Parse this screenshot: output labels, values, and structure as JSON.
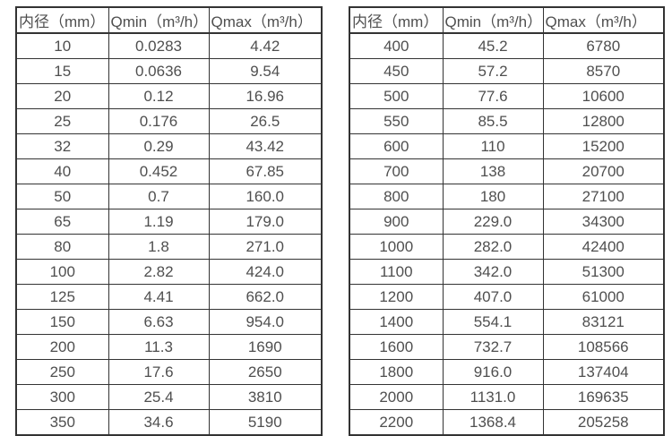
{
  "colors": {
    "border": "#333333",
    "text": "#4f4f4f",
    "background": "#ffffff"
  },
  "tables": [
    {
      "name": "small-diameter-flow-table",
      "headers": [
        "内径（mm）",
        "Qmin（m³/h）",
        "Qmax（m³/h）"
      ],
      "rows": [
        [
          "10",
          "0.0283",
          "4.42"
        ],
        [
          "15",
          "0.0636",
          "9.54"
        ],
        [
          "20",
          "0.12",
          "16.96"
        ],
        [
          "25",
          "0.176",
          "26.5"
        ],
        [
          "32",
          "0.29",
          "43.42"
        ],
        [
          "40",
          "0.452",
          "67.85"
        ],
        [
          "50",
          "0.7",
          "160.0"
        ],
        [
          "65",
          "1.19",
          "179.0"
        ],
        [
          "80",
          "1.8",
          "271.0"
        ],
        [
          "100",
          "2.82",
          "424.0"
        ],
        [
          "125",
          "4.41",
          "662.0"
        ],
        [
          "150",
          "6.63",
          "954.0"
        ],
        [
          "200",
          "11.3",
          "1690"
        ],
        [
          "250",
          "17.6",
          "2650"
        ],
        [
          "300",
          "25.4",
          "3810"
        ],
        [
          "350",
          "34.6",
          "5190"
        ]
      ]
    },
    {
      "name": "large-diameter-flow-table",
      "headers": [
        "内径（mm）",
        "Qmin（m³/h）",
        "Qmax（m³/h）"
      ],
      "rows": [
        [
          "400",
          "45.2",
          "6780"
        ],
        [
          "450",
          "57.2",
          "8570"
        ],
        [
          "500",
          "77.6",
          "10600"
        ],
        [
          "550",
          "85.5",
          "12800"
        ],
        [
          "600",
          "110",
          "15200"
        ],
        [
          "700",
          "138",
          "20700"
        ],
        [
          "800",
          "180",
          "27100"
        ],
        [
          "900",
          "229.0",
          "34300"
        ],
        [
          "1000",
          "282.0",
          "42400"
        ],
        [
          "1100",
          "342.0",
          "51300"
        ],
        [
          "1200",
          "407.0",
          "61000"
        ],
        [
          "1400",
          "554.1",
          "83121"
        ],
        [
          "1600",
          "732.7",
          "108566"
        ],
        [
          "1800",
          "916.0",
          "137404"
        ],
        [
          "2000",
          "1131.0",
          "169635"
        ],
        [
          "2200",
          "1368.4",
          "205258"
        ]
      ]
    }
  ]
}
